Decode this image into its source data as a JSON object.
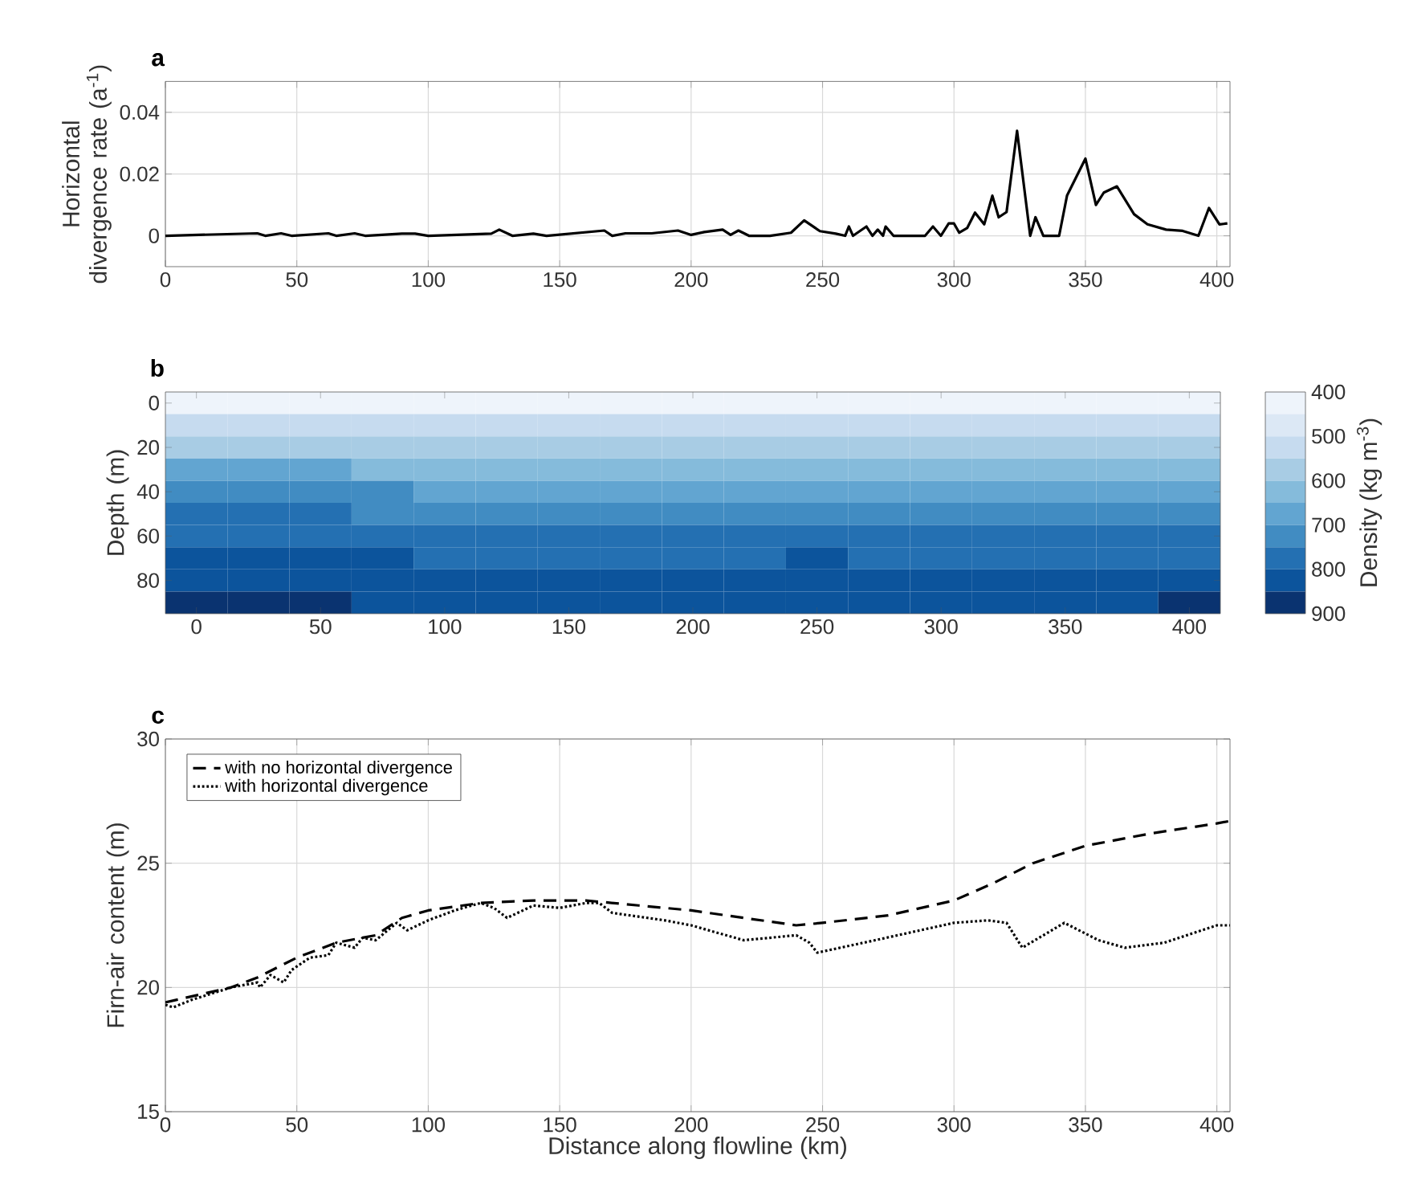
{
  "chart_data": [
    {
      "type": "line",
      "title": "a",
      "ylabel": "Horizontal divergence rate (a$^{-1}$)",
      "color": "#000000",
      "grid": true,
      "x": [
        0,
        35,
        38,
        44,
        48,
        62,
        65,
        72,
        76,
        90,
        95,
        100,
        124,
        127,
        132,
        140,
        145,
        167,
        170,
        175,
        185,
        195,
        200,
        205,
        212,
        215,
        218,
        222,
        230,
        238,
        243,
        249,
        255,
        258.6,
        260,
        261.6,
        266.7,
        269,
        271,
        273,
        274,
        277,
        289,
        292,
        295,
        298,
        300,
        302,
        305,
        308,
        311.5,
        314.6,
        317,
        320,
        324,
        329,
        331,
        334,
        340,
        343,
        350,
        354,
        357,
        362,
        368.5,
        373.6,
        380.7,
        387,
        393,
        397,
        401,
        404
      ],
      "values": [
        0,
        0.0008,
        0,
        0.0008,
        0,
        0.0008,
        0,
        0.0008,
        0,
        0.0007,
        0.0007,
        0,
        0.0007,
        0.002,
        0,
        0.0007,
        0,
        0.0017,
        0,
        0.0008,
        0.0008,
        0.0017,
        0.0003,
        0.0012,
        0.002,
        0.0003,
        0.0017,
        0,
        0,
        0.001,
        0.005,
        0.0015,
        0.0007,
        0,
        0.003,
        0,
        0.003,
        0,
        0.002,
        0,
        0.003,
        0,
        0,
        0.003,
        0,
        0.004,
        0.004,
        0.001,
        0.0025,
        0.0075,
        0.0037,
        0.013,
        0.006,
        0.0077,
        0.034,
        0,
        0.006,
        0,
        0,
        0.013,
        0.025,
        0.01,
        0.014,
        0.016,
        0.007,
        0.0037,
        0.002,
        0.0016,
        0,
        0.009,
        0.0037,
        0.004
      ],
      "xlim": [
        0,
        405
      ],
      "xticks": [
        0,
        50,
        100,
        150,
        200,
        250,
        300,
        350,
        400
      ],
      "ylim": [
        -0.01,
        0.05
      ],
      "yticks": [
        0,
        0.02,
        0.04
      ]
    },
    {
      "type": "heatmap",
      "title": "b",
      "ylabel": "Depth (m)",
      "clabel": "Density (kg m$^{-3}$)",
      "categories": [
        "0",
        null,
        "50",
        null,
        "100",
        null,
        "150",
        null,
        "200",
        null,
        "250",
        null,
        "300",
        null,
        "350",
        null,
        "400"
      ],
      "y_categories": [
        "0",
        null,
        "20",
        null,
        "40",
        null,
        "60",
        null,
        "80",
        null
      ],
      "cells": [
        [
          400,
          400,
          400,
          400,
          400,
          400,
          400,
          400,
          400,
          400,
          400,
          400,
          400,
          400,
          400,
          400,
          400
        ],
        [
          525,
          525,
          525,
          525,
          525,
          525,
          525,
          525,
          525,
          525,
          525,
          525,
          525,
          525,
          525,
          525,
          525
        ],
        [
          575,
          575,
          575,
          575,
          575,
          575,
          575,
          575,
          575,
          575,
          575,
          575,
          575,
          575,
          575,
          575,
          575
        ],
        [
          675,
          675,
          675,
          625,
          625,
          625,
          625,
          625,
          625,
          625,
          625,
          625,
          625,
          625,
          625,
          625,
          625
        ],
        [
          725,
          725,
          725,
          725,
          675,
          675,
          675,
          675,
          675,
          675,
          675,
          675,
          675,
          675,
          675,
          675,
          675
        ],
        [
          775,
          775,
          775,
          725,
          725,
          725,
          725,
          725,
          725,
          725,
          725,
          725,
          725,
          725,
          725,
          725,
          725
        ],
        [
          775,
          775,
          775,
          775,
          775,
          775,
          775,
          775,
          775,
          775,
          775,
          775,
          775,
          775,
          775,
          775,
          775
        ],
        [
          825,
          825,
          825,
          825,
          775,
          775,
          775,
          775,
          775,
          775,
          825,
          775,
          775,
          775,
          775,
          775,
          775
        ],
        [
          825,
          825,
          825,
          825,
          825,
          825,
          825,
          825,
          825,
          825,
          825,
          825,
          825,
          825,
          825,
          825,
          825
        ],
        [
          875,
          875,
          875,
          825,
          825,
          825,
          825,
          825,
          825,
          825,
          825,
          825,
          825,
          825,
          825,
          825,
          875
        ]
      ],
      "clim": [
        400,
        900
      ],
      "cticks": [
        400,
        500,
        600,
        700,
        800,
        900
      ]
    },
    {
      "type": "line",
      "title": "c",
      "xlabel": "Distance along flowline (km)",
      "ylabel": "Firn-air content (m)",
      "grid": true,
      "legend": "top left",
      "series": [
        {
          "name": "with no horizontal divergence",
          "color": "#000000",
          "line_style": "dashed",
          "x": [
            0,
            25,
            35,
            50,
            65,
            80,
            90,
            100,
            120,
            140,
            160,
            180,
            200,
            220,
            240,
            250,
            275,
            300,
            315,
            330,
            350,
            375,
            400,
            405
          ],
          "values": [
            19.4,
            20,
            20.4,
            21.2,
            21.8,
            22.1,
            22.8,
            23.1,
            23.4,
            23.5,
            23.5,
            23.3,
            23.1,
            22.8,
            22.5,
            22.6,
            22.9,
            23.5,
            24.2,
            25,
            25.7,
            26.2,
            26.6,
            26.7
          ]
        },
        {
          "name": "with horizontal divergence",
          "color": "#000000",
          "line_style": "dotted",
          "x": [
            0,
            3,
            10,
            25,
            35,
            36,
            40,
            45,
            48,
            55,
            62,
            65,
            72,
            75,
            80,
            88,
            92,
            100,
            110,
            120,
            125,
            130,
            140,
            150,
            160,
            165,
            170,
            190,
            200,
            220,
            240,
            245,
            248,
            270,
            300,
            313,
            320,
            326,
            342,
            355,
            365,
            380,
            400,
            405
          ],
          "values": [
            19.3,
            19.2,
            19.5,
            20,
            20.2,
            20,
            20.5,
            20.2,
            20.7,
            21.2,
            21.3,
            21.8,
            21.6,
            22,
            21.9,
            22.6,
            22.3,
            22.7,
            23.1,
            23.4,
            23.2,
            22.8,
            23.3,
            23.2,
            23.4,
            23.4,
            23,
            22.7,
            22.5,
            21.9,
            22.1,
            21.8,
            21.4,
            21.9,
            22.6,
            22.7,
            22.6,
            21.6,
            22.6,
            21.9,
            21.6,
            21.8,
            22.5,
            22.5
          ]
        }
      ],
      "xlim": [
        0,
        405
      ],
      "xticks": [
        0,
        50,
        100,
        150,
        200,
        250,
        300,
        350,
        400
      ],
      "ylim": [
        15,
        30
      ],
      "yticks": [
        15,
        20,
        25,
        30
      ]
    }
  ]
}
